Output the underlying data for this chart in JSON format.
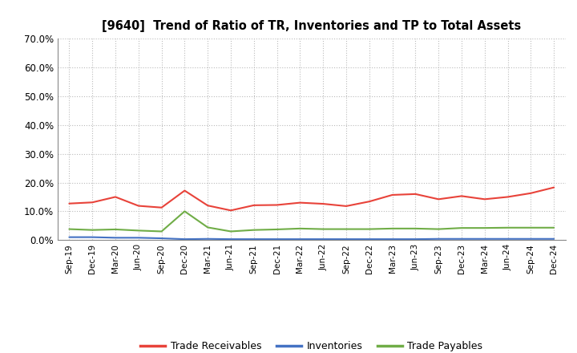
{
  "title": "[9640]  Trend of Ratio of TR, Inventories and TP to Total Assets",
  "x_labels": [
    "Sep-19",
    "Dec-19",
    "Mar-20",
    "Jun-20",
    "Sep-20",
    "Dec-20",
    "Mar-21",
    "Jun-21",
    "Sep-21",
    "Dec-21",
    "Mar-22",
    "Jun-22",
    "Sep-22",
    "Dec-22",
    "Mar-23",
    "Jun-23",
    "Sep-23",
    "Dec-23",
    "Mar-24",
    "Jun-24",
    "Sep-24",
    "Dec-24"
  ],
  "trade_receivables": [
    0.127,
    0.131,
    0.15,
    0.119,
    0.113,
    0.172,
    0.12,
    0.103,
    0.121,
    0.122,
    0.13,
    0.126,
    0.118,
    0.134,
    0.157,
    0.16,
    0.142,
    0.153,
    0.142,
    0.15,
    0.163,
    0.183
  ],
  "inventories": [
    0.01,
    0.01,
    0.008,
    0.008,
    0.006,
    0.003,
    0.004,
    0.003,
    0.003,
    0.003,
    0.003,
    0.003,
    0.003,
    0.003,
    0.003,
    0.003,
    0.004,
    0.004,
    0.004,
    0.004,
    0.004,
    0.004
  ],
  "trade_payables": [
    0.038,
    0.035,
    0.037,
    0.033,
    0.03,
    0.1,
    0.044,
    0.03,
    0.035,
    0.037,
    0.04,
    0.038,
    0.038,
    0.038,
    0.04,
    0.04,
    0.038,
    0.042,
    0.042,
    0.043,
    0.043,
    0.043
  ],
  "tr_color": "#e8433a",
  "inv_color": "#4472c4",
  "tp_color": "#70ad47",
  "ylim": [
    0.0,
    0.7
  ],
  "yticks": [
    0.0,
    0.1,
    0.2,
    0.3,
    0.4,
    0.5,
    0.6,
    0.7
  ],
  "bg_color": "#ffffff",
  "plot_bg_color": "#ffffff",
  "grid_color": "#bbbbbb",
  "legend_labels": [
    "Trade Receivables",
    "Inventories",
    "Trade Payables"
  ]
}
